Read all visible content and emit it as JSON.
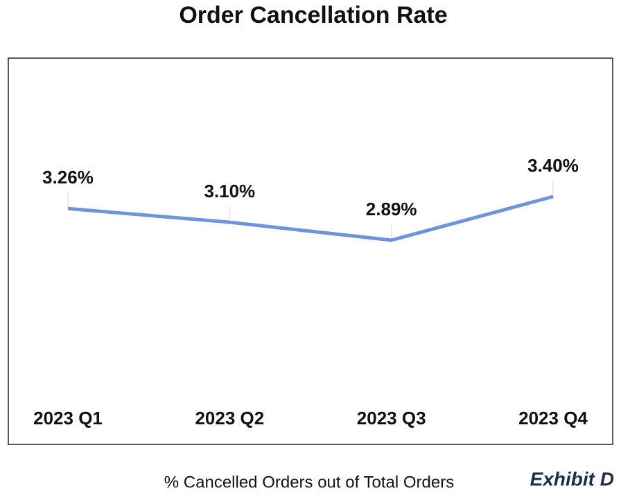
{
  "chart_data": {
    "type": "line",
    "title": "Order Cancellation Rate",
    "categories": [
      "2023 Q1",
      "2023 Q2",
      "2023 Q3",
      "2023 Q4"
    ],
    "values": [
      3.26,
      3.1,
      2.89,
      3.4
    ],
    "value_labels": [
      "3.26%",
      "3.10%",
      "2.89%",
      "3.40%"
    ],
    "color": "#6f93dc",
    "xlabel": "% Cancelled Orders out of Total Orders",
    "annotation": "Exhibit D"
  }
}
